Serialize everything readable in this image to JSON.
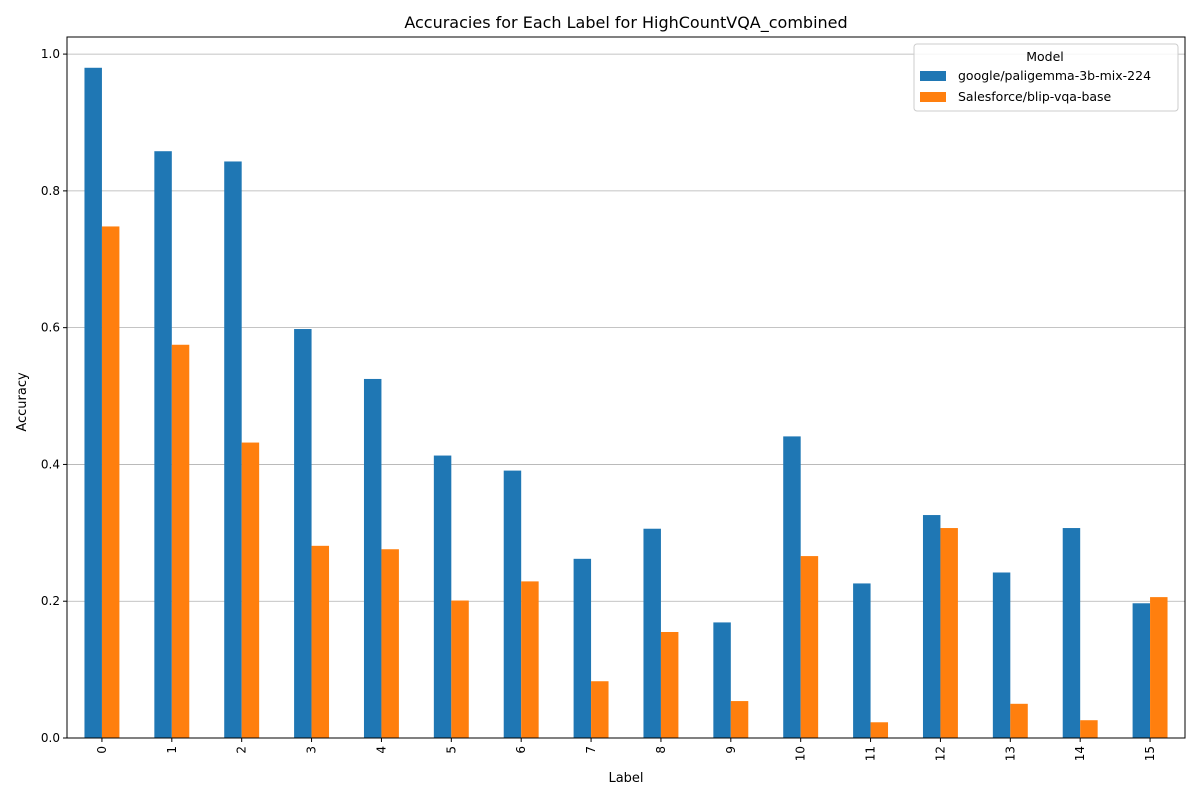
{
  "chart_data": {
    "type": "bar",
    "title": "Accuracies for Each Label for HighCountVQA_combined",
    "xlabel": "Label",
    "ylabel": "Accuracy",
    "categories": [
      "0",
      "1",
      "2",
      "3",
      "4",
      "5",
      "6",
      "7",
      "8",
      "9",
      "10",
      "11",
      "12",
      "13",
      "14",
      "15"
    ],
    "series": [
      {
        "name": "google/paligemma-3b-mix-224",
        "color": "#1f77b4",
        "values": [
          0.98,
          0.858,
          0.843,
          0.598,
          0.525,
          0.413,
          0.391,
          0.262,
          0.306,
          0.169,
          0.441,
          0.226,
          0.326,
          0.242,
          0.307,
          0.197
        ]
      },
      {
        "name": "Salesforce/blip-vqa-base",
        "color": "#ff7f0e",
        "values": [
          0.748,
          0.575,
          0.432,
          0.281,
          0.276,
          0.201,
          0.229,
          0.083,
          0.155,
          0.054,
          0.266,
          0.023,
          0.307,
          0.05,
          0.026,
          0.206
        ]
      }
    ],
    "ylim": [
      0,
      1.025
    ],
    "yticks": [
      0.0,
      0.2,
      0.4,
      0.6,
      0.8,
      1.0
    ],
    "ytick_labels": [
      "0.0",
      "0.2",
      "0.4",
      "0.6",
      "0.8",
      "1.0"
    ],
    "grid": "y",
    "legend": {
      "title": "Model",
      "position": "top-right"
    },
    "xtick_rotation": "vertical"
  }
}
